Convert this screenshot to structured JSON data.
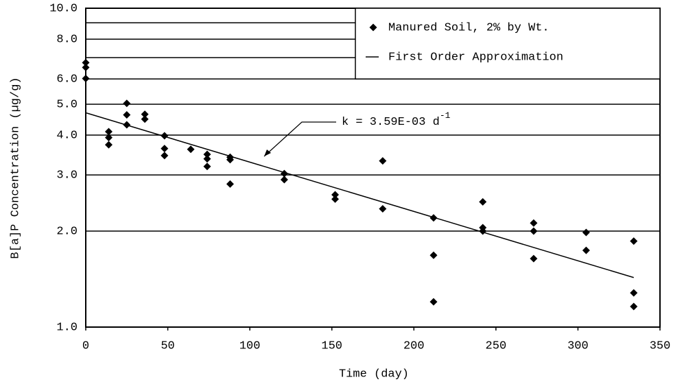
{
  "chart_data": {
    "type": "scatter",
    "x_label": "Time (day)",
    "y_label": "B[a]P Concentration (µg/g)",
    "annotation": {
      "text": "k = 3.59E-03 d",
      "superscript": "-1"
    },
    "log_y": true,
    "grid": true,
    "legend": "top-right",
    "xlim": [
      0,
      350
    ],
    "xticks": [
      0,
      50,
      100,
      150,
      200,
      250,
      300,
      350
    ],
    "ylim": [
      1,
      10
    ],
    "yticks": [
      {
        "value": 1,
        "label": "1.0"
      },
      {
        "value": 2,
        "label": "2.0"
      },
      {
        "value": 3,
        "label": "3.0"
      },
      {
        "value": 4,
        "label": "4.0"
      },
      {
        "value": 5,
        "label": "5.0"
      },
      {
        "value": 6,
        "label": "6.0"
      },
      {
        "value": 8,
        "label": "8.0"
      },
      {
        "value": 10,
        "label": "10.0"
      }
    ],
    "yminor": [
      7,
      9
    ],
    "series": [
      {
        "name": "Manured Soil, 2% by Wt.",
        "type": "scatter",
        "color": "#000000",
        "x": [
          0,
          0,
          0,
          14,
          14,
          14,
          25,
          25,
          25,
          36,
          36,
          48,
          48,
          48,
          64,
          74,
          74,
          74,
          88,
          88,
          88,
          121,
          121,
          152,
          152,
          181,
          181,
          212,
          212,
          212,
          242,
          242,
          242,
          273,
          273,
          273,
          305,
          305,
          334,
          334,
          334
        ],
        "values": [
          6.75,
          6.52,
          6.02,
          4.1,
          3.93,
          3.73,
          5.03,
          4.63,
          4.31,
          4.65,
          4.49,
          3.98,
          3.63,
          3.45,
          3.61,
          3.48,
          3.37,
          3.19,
          3.41,
          3.35,
          2.81,
          3.03,
          2.9,
          2.6,
          2.52,
          3.32,
          2.35,
          2.2,
          1.68,
          1.2,
          2.47,
          2.05,
          2.0,
          2.12,
          2.0,
          1.64,
          1.98,
          1.74,
          1.86,
          1.28,
          1.16
        ]
      },
      {
        "name": "First Order Approximation",
        "type": "line",
        "color": "#000000",
        "x": [
          0,
          334
        ],
        "values": [
          4.7,
          1.43
        ]
      }
    ]
  }
}
